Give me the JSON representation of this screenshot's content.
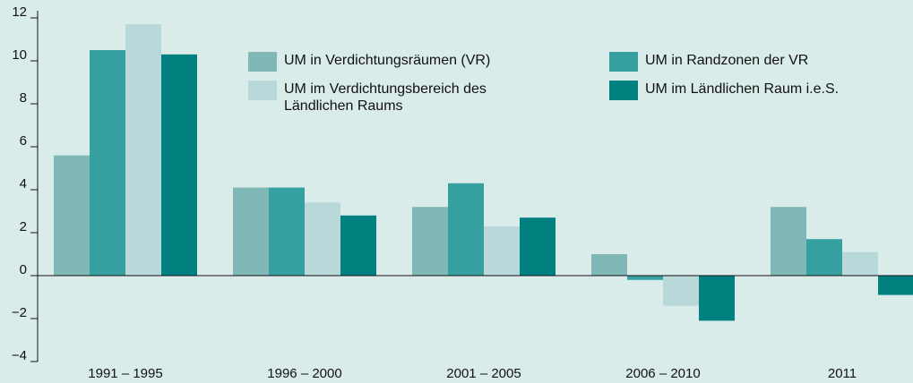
{
  "chart_data": {
    "type": "bar",
    "categories": [
      "1991 – 1995",
      "1996 – 2000",
      "2001 – 2005",
      "2006 – 2010",
      "2011"
    ],
    "series": [
      {
        "name": "UM in Verdichtungsräumen (VR)",
        "color": "#80b8b7",
        "values": [
          5.6,
          4.1,
          3.2,
          1.0,
          3.2
        ]
      },
      {
        "name": "UM in Randzonen der VR",
        "color": "#36a0a1",
        "values": [
          10.5,
          4.1,
          4.3,
          -0.2,
          1.7
        ]
      },
      {
        "name": "UM im Verdichtungsbereich des Ländlichen Raums",
        "color": "#b8d8da",
        "values": [
          11.7,
          3.4,
          2.3,
          -1.4,
          1.1
        ]
      },
      {
        "name": "UM im Ländlichen Raum i.e.S.",
        "color": "#00807f",
        "values": [
          10.3,
          2.8,
          2.7,
          -2.1,
          -0.9
        ]
      }
    ],
    "ylim": [
      -4,
      12
    ],
    "yticks": [
      {
        "value": -4,
        "label": "−4"
      },
      {
        "value": -2,
        "label": "−2"
      },
      0,
      2,
      4,
      6,
      8,
      10,
      12
    ]
  }
}
